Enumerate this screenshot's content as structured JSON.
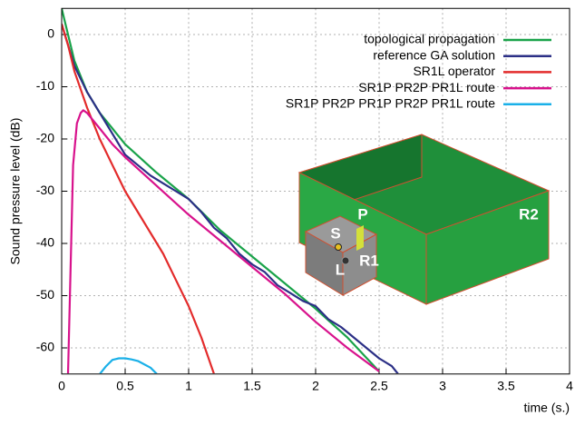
{
  "chart_data": {
    "type": "line",
    "xlabel": "time (s.)",
    "ylabel": "Sound pressure level (dB)",
    "xlim": [
      0,
      4
    ],
    "ylim": [
      -65,
      5
    ],
    "xticks": [
      0,
      0.5,
      1,
      1.5,
      2,
      2.5,
      3,
      3.5,
      4
    ],
    "yticks": [
      0,
      -10,
      -20,
      -30,
      -40,
      -50,
      -60
    ],
    "grid": true,
    "legend": "top-right",
    "series": [
      {
        "name": "topological propagation",
        "color": "#1aa34a",
        "x": [
          0,
          0.1,
          0.2,
          0.3,
          0.4,
          0.5,
          0.75,
          1,
          1.25,
          1.5,
          1.75,
          2,
          2.25,
          2.5
        ],
        "values": [
          5,
          -5,
          -11,
          -15,
          -18,
          -21,
          -26.5,
          -31.5,
          -37.5,
          -42.5,
          -47.5,
          -52.5,
          -58,
          -64.5
        ]
      },
      {
        "name": "reference GA solution",
        "color": "#2b2f86",
        "x": [
          0,
          0.05,
          0.1,
          0.2,
          0.3,
          0.4,
          0.5,
          0.6,
          0.7,
          0.8,
          0.9,
          1.0,
          1.1,
          1.2,
          1.3,
          1.4,
          1.5,
          1.6,
          1.7,
          1.8,
          1.9,
          2.0,
          2.1,
          2.2,
          2.3,
          2.4,
          2.5,
          2.6,
          2.65
        ],
        "values": [
          2,
          -2,
          -6,
          -11,
          -15,
          -19,
          -23,
          -25,
          -27,
          -28.5,
          -30,
          -31.5,
          -34,
          -37,
          -39,
          -42,
          -44,
          -45.5,
          -48,
          -49.5,
          -51,
          -52,
          -54.5,
          -56,
          -58,
          -60,
          -62,
          -63.5,
          -65
        ]
      },
      {
        "name": "SR1L operator",
        "color": "#e32b2b",
        "x": [
          0,
          0.05,
          0.1,
          0.2,
          0.3,
          0.4,
          0.5,
          0.6,
          0.7,
          0.8,
          0.9,
          1.0,
          1.1,
          1.2
        ],
        "values": [
          2,
          -2,
          -7,
          -14,
          -20,
          -25,
          -30,
          -34,
          -38,
          -42,
          -47,
          -52,
          -58,
          -65
        ]
      },
      {
        "name": "SR1P PR2P PR1L route",
        "color": "#d8128c",
        "x": [
          0.05,
          0.07,
          0.09,
          0.12,
          0.15,
          0.17,
          0.2,
          0.3,
          0.4,
          0.5,
          0.75,
          1,
          1.25,
          1.5,
          1.75,
          2,
          2.25,
          2.5
        ],
        "values": [
          -65,
          -45,
          -25,
          -17,
          -15,
          -14.5,
          -15,
          -18,
          -21,
          -23.5,
          -29,
          -34.5,
          -39.5,
          -44.5,
          -49.5,
          -55,
          -60,
          -64.5
        ]
      },
      {
        "name": "SR1P PR2P PR1P PR2P PR1L route",
        "color": "#1ab0e8",
        "x": [
          0.3,
          0.35,
          0.4,
          0.45,
          0.5,
          0.55,
          0.6,
          0.7,
          0.75
        ],
        "values": [
          -65,
          -63.5,
          -62.3,
          -62,
          -62,
          -62.2,
          -62.5,
          -63.8,
          -65
        ]
      }
    ],
    "annotations": [
      "S",
      "P",
      "L",
      "R1",
      "R2"
    ]
  }
}
